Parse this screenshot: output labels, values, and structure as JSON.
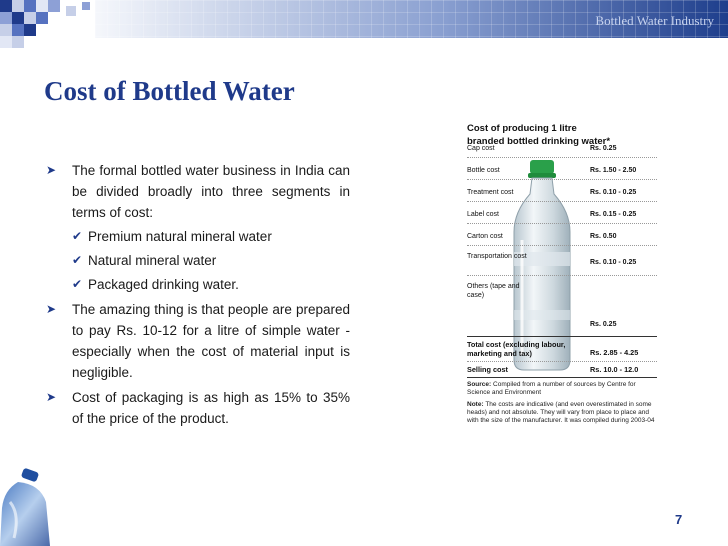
{
  "header": {
    "text": "Bottled Water Industry"
  },
  "title": "Cost of Bottled Water",
  "bullets": {
    "b1": "The formal bottled water business in India can be divided broadly into three segments in terms of cost:",
    "sub": [
      "Premium natural mineral water",
      "Natural mineral water",
      "Packaged drinking water."
    ],
    "b2": "The amazing thing is that people are prepared to pay Rs. 10-12 for a litre of simple water - especially when the cost of material input is negligible.",
    "b3": "Cost of packaging is as high as 15% to 35% of the price of the product."
  },
  "panel": {
    "title_line1": "Cost of producing 1 litre",
    "title_line2": "branded bottled drinking water*",
    "rows": [
      {
        "label": "Cap cost",
        "value": "Rs. 0.25"
      },
      {
        "label": "Bottle cost",
        "value": "Rs. 1.50 - 2.50"
      },
      {
        "label": "Treatment cost",
        "value": "Rs. 0.10 - 0.25"
      },
      {
        "label": "Label cost",
        "value": "Rs. 0.15 - 0.25"
      },
      {
        "label": "Carton cost",
        "value": "Rs. 0.50"
      },
      {
        "label": "Transportation cost",
        "value": "Rs. 0.10 - 0.25"
      },
      {
        "label": "Others (tape and case)",
        "value": "Rs. 0.25"
      }
    ],
    "total_label": "Total cost (excluding labour, marketing and tax)",
    "total_value": "Rs. 2.85 - 4.25",
    "selling_label": "Selling cost",
    "selling_value": "Rs. 10.0 - 12.0",
    "source_label": "Source:",
    "source_text": "Compiled from a number of sources by Centre for Science and Environment",
    "note_label": "Note:",
    "note_text": "The costs are indicative (and even overestimated in some heads) and not absolute. They will vary from place to place and with the size of the manufacturer. It was compiled during 2003-04"
  },
  "colors": {
    "title": "#1f3a8a",
    "band": "#1e3e8c",
    "accent_green": "#2aa04a"
  },
  "slide_number": "7"
}
